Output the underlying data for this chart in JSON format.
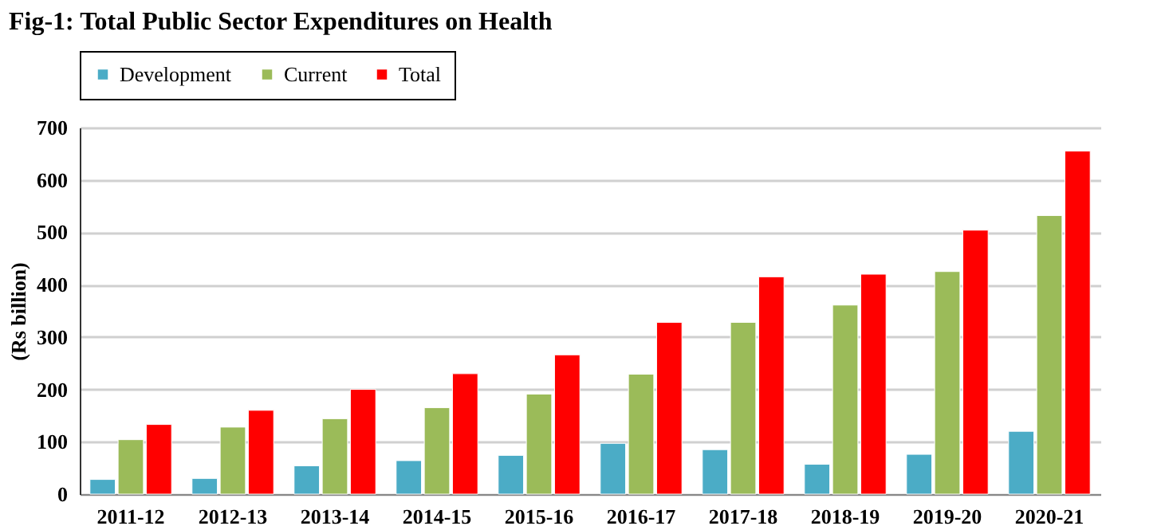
{
  "chart_data": {
    "type": "bar",
    "title": "Fig-1: Total Public Sector Expenditures on Health",
    "ylabel": "(Rs billion)",
    "categories": [
      "2011-12",
      "2012-13",
      "2013-14",
      "2014-15",
      "2015-16",
      "2016-17",
      "2017-18",
      "2018-19",
      "2019-20",
      "2020-21"
    ],
    "series": [
      {
        "name": "Development",
        "color": "#4bacc6",
        "values": [
          28,
          30,
          54,
          64,
          74,
          97,
          85,
          57,
          76,
          120
        ]
      },
      {
        "name": "Current",
        "color": "#9bbb59",
        "values": [
          104,
          128,
          144,
          165,
          191,
          229,
          328,
          361,
          425,
          532
        ]
      },
      {
        "name": "Total",
        "color": "#ff0000",
        "values": [
          133,
          160,
          200,
          230,
          266,
          328,
          415,
          420,
          504,
          655
        ]
      }
    ],
    "ylim": [
      0,
      700
    ],
    "yticks": [
      0,
      100,
      200,
      300,
      400,
      500,
      600,
      700
    ],
    "grid": "y",
    "legend": "top"
  }
}
